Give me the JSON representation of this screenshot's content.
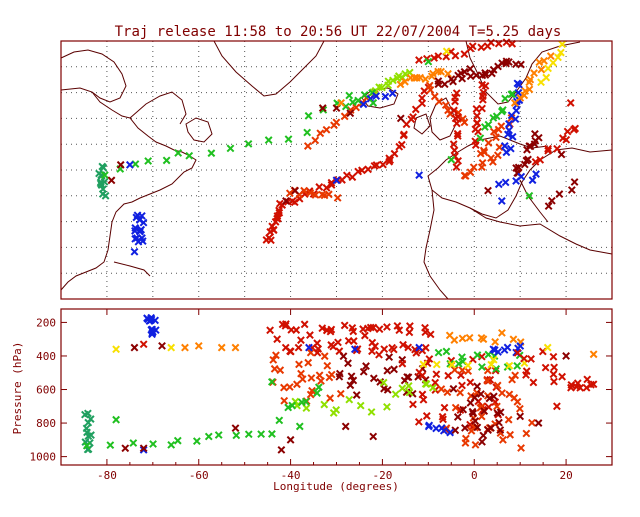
{
  "chart_data": {
    "type": "scatter",
    "title": "Traj release 11:58 to 20:56 UT 22/07/2004    T=5.25 days",
    "map_panel": {
      "lon_range": [
        -90,
        30
      ],
      "lat_range": [
        20,
        70
      ],
      "grid": true
    },
    "pressure_panel": {
      "xlabel": "Longitude  (degrees)",
      "ylabel": "Pressure  (hPa)",
      "xlim": [
        -90,
        30
      ],
      "ylim": [
        1050,
        120
      ],
      "x_ticks": [
        "-80",
        "-60",
        "-40",
        "-20",
        "0",
        "20"
      ],
      "x_tick_values": [
        -80,
        -60,
        -40,
        -20,
        0,
        20
      ],
      "y_ticks": [
        "200",
        "400",
        "600",
        "800",
        "1000"
      ],
      "y_tick_values": [
        200,
        400,
        600,
        800,
        1000
      ]
    },
    "colors": {
      "darkred": "#8b0000",
      "red": "#d01000",
      "redorange": "#e83800",
      "orange": "#ff8000",
      "yellow": "#f8e000",
      "lime": "#90e000",
      "green": "#20c020",
      "seagreen": "#20a060",
      "blue": "#1020e0",
      "frame": "#800000"
    },
    "map_clusters": [
      {
        "lon": [
          -81,
          -81
        ],
        "lat": [
          40,
          46
        ],
        "n": 12,
        "jit": 0.8,
        "color": "seagreen"
      },
      {
        "lon": [
          -81,
          -64
        ],
        "lat": [
          44,
          48
        ],
        "n": 6,
        "jit": 0.6,
        "color": "green"
      },
      {
        "lon": [
          -62,
          -36
        ],
        "lat": [
          48,
          52
        ],
        "n": 7,
        "jit": 0.5,
        "color": "green"
      },
      {
        "lon": [
          -36,
          -27
        ],
        "lat": [
          55,
          59
        ],
        "n": 4,
        "jit": 0.6,
        "color": "green"
      },
      {
        "lon": [
          -73,
          -73
        ],
        "lat": [
          30,
          36
        ],
        "n": 16,
        "jit": 1.0,
        "color": "blue"
      },
      {
        "lon": [
          -45,
          -42
        ],
        "lat": [
          31,
          38
        ],
        "n": 14,
        "jit": 0.5,
        "color": "red"
      },
      {
        "lon": [
          -42,
          -18
        ],
        "lat": [
          38,
          47
        ],
        "n": 24,
        "jit": 0.6,
        "color": "red"
      },
      {
        "lon": [
          -18,
          -10
        ],
        "lat": [
          47,
          61
        ],
        "n": 14,
        "jit": 0.5,
        "color": "red"
      },
      {
        "lon": [
          -10,
          -2
        ],
        "lat": [
          61,
          54
        ],
        "n": 10,
        "jit": 0.6,
        "color": "redorange"
      },
      {
        "lon": [
          -40,
          -30
        ],
        "lat": [
          41,
          40
        ],
        "n": 10,
        "jit": 0.6,
        "color": "redorange"
      },
      {
        "lon": [
          -36,
          -22
        ],
        "lat": [
          50,
          60
        ],
        "n": 12,
        "jit": 0.4,
        "color": "redorange"
      },
      {
        "lon": [
          -22,
          -14
        ],
        "lat": [
          60,
          64
        ],
        "n": 12,
        "jit": 0.4,
        "color": "lime"
      },
      {
        "lon": [
          -28,
          -22
        ],
        "lat": [
          57,
          60
        ],
        "n": 5,
        "jit": 0.4,
        "color": "green"
      },
      {
        "lon": [
          -24,
          -18
        ],
        "lat": [
          58,
          60
        ],
        "n": 5,
        "jit": 0.5,
        "color": "blue"
      },
      {
        "lon": [
          -16,
          -6
        ],
        "lat": [
          62,
          64
        ],
        "n": 12,
        "jit": 0.5,
        "color": "orange"
      },
      {
        "lon": [
          -8,
          10
        ],
        "lat": [
          62,
          66
        ],
        "n": 24,
        "jit": 0.9,
        "color": "darkred"
      },
      {
        "lon": [
          -4,
          -4
        ],
        "lat": [
          46,
          60
        ],
        "n": 14,
        "jit": 0.5,
        "color": "red"
      },
      {
        "lon": [
          -2,
          6
        ],
        "lat": [
          44,
          49
        ],
        "n": 10,
        "jit": 0.8,
        "color": "redorange"
      },
      {
        "lon": [
          0,
          2
        ],
        "lat": [
          50,
          62
        ],
        "n": 14,
        "jit": 0.7,
        "color": "red"
      },
      {
        "lon": [
          1,
          8
        ],
        "lat": [
          48,
          55
        ],
        "n": 10,
        "jit": 0.8,
        "color": "redorange"
      },
      {
        "lon": [
          2,
          8
        ],
        "lat": [
          52,
          60
        ],
        "n": 10,
        "jit": 0.9,
        "color": "green"
      },
      {
        "lon": [
          7,
          10
        ],
        "lat": [
          48,
          62
        ],
        "n": 16,
        "jit": 0.8,
        "color": "blue"
      },
      {
        "lon": [
          9,
          14
        ],
        "lat": [
          44,
          52
        ],
        "n": 14,
        "jit": 0.8,
        "color": "darkred"
      },
      {
        "lon": [
          14,
          22
        ],
        "lat": [
          47,
          53
        ],
        "n": 10,
        "jit": 0.9,
        "color": "red"
      },
      {
        "lon": [
          9,
          16
        ],
        "lat": [
          58,
          67
        ],
        "n": 12,
        "jit": 0.7,
        "color": "orange"
      },
      {
        "lon": [
          15,
          19
        ],
        "lat": [
          62,
          69
        ],
        "n": 7,
        "jit": 0.6,
        "color": "yellow"
      },
      {
        "lon": [
          -12,
          8
        ],
        "lat": [
          66,
          70
        ],
        "n": 16,
        "jit": 0.6,
        "color": "red"
      },
      {
        "lon": [
          5,
          14
        ],
        "lat": [
          42,
          44
        ],
        "n": 6,
        "jit": 0.6,
        "color": "blue"
      },
      {
        "lon": [
          16,
          22
        ],
        "lat": [
          38,
          42
        ],
        "n": 5,
        "jit": 0.8,
        "color": "darkred"
      }
    ],
    "map_markers": [
      {
        "lon": -77,
        "lat": 46,
        "color": "darkred"
      },
      {
        "lon": -75,
        "lat": 46,
        "color": "blue"
      },
      {
        "lon": -79,
        "lat": 43,
        "color": "darkred"
      },
      {
        "lon": -30,
        "lat": 57,
        "color": "darkred"
      },
      {
        "lon": -33,
        "lat": 57,
        "color": "darkred"
      },
      {
        "lon": -27,
        "lat": 56,
        "color": "darkred"
      },
      {
        "lon": -29,
        "lat": 58,
        "color": "orange"
      },
      {
        "lon": -22,
        "lat": 58,
        "color": "green"
      },
      {
        "lon": -16,
        "lat": 55,
        "color": "darkred"
      },
      {
        "lon": -5,
        "lat": 47,
        "color": "green"
      },
      {
        "lon": -10,
        "lat": 66,
        "color": "green"
      },
      {
        "lon": -6,
        "lat": 68,
        "color": "yellow"
      },
      {
        "lon": 19,
        "lat": 48,
        "color": "darkred"
      },
      {
        "lon": 21,
        "lat": 58,
        "color": "red"
      },
      {
        "lon": -12,
        "lat": 44,
        "color": "blue"
      },
      {
        "lon": -39,
        "lat": 41,
        "color": "darkred"
      },
      {
        "lon": -41,
        "lat": 39,
        "color": "darkred"
      },
      {
        "lon": -30,
        "lat": 43,
        "color": "blue"
      },
      {
        "lon": 3,
        "lat": 41,
        "color": "darkred"
      },
      {
        "lon": 12,
        "lat": 40,
        "color": "green"
      },
      {
        "lon": 6,
        "lat": 39,
        "color": "blue"
      }
    ],
    "pressure_clusters": [
      {
        "lon": [
          -84,
          -84
        ],
        "p": [
          740,
          960
        ],
        "n": 12,
        "jit": 0.8,
        "color": "seagreen"
      },
      {
        "lon": [
          -84,
          -60
        ],
        "p": [
          930,
          910
        ],
        "n": 6,
        "jit": 0.5,
        "color": "green"
      },
      {
        "lon": [
          -58,
          -44
        ],
        "p": [
          880,
          860
        ],
        "n": 6,
        "jit": 0.6,
        "color": "green"
      },
      {
        "lon": [
          -71,
          -70
        ],
        "p": [
          180,
          320
        ],
        "n": 14,
        "jit": 0.8,
        "color": "blue"
      },
      {
        "lon": [
          -44,
          -10
        ],
        "p": [
          240,
          250
        ],
        "n": 30,
        "jit": 1.8,
        "color": "red"
      },
      {
        "lon": [
          -44,
          -10
        ],
        "p": [
          330,
          360
        ],
        "n": 30,
        "jit": 1.8,
        "color": "red"
      },
      {
        "lon": [
          -44,
          -30
        ],
        "p": [
          400,
          660
        ],
        "n": 26,
        "jit": 1.6,
        "color": "redorange"
      },
      {
        "lon": [
          -30,
          -10
        ],
        "p": [
          420,
          620
        ],
        "n": 26,
        "jit": 1.6,
        "color": "darkred"
      },
      {
        "lon": [
          -14,
          6
        ],
        "p": [
          400,
          820
        ],
        "n": 40,
        "jit": 2.2,
        "color": "red"
      },
      {
        "lon": [
          -6,
          12
        ],
        "p": [
          480,
          940
        ],
        "n": 40,
        "jit": 2.0,
        "color": "redorange"
      },
      {
        "lon": [
          -4,
          6
        ],
        "p": [
          600,
          900
        ],
        "n": 24,
        "jit": 1.6,
        "color": "darkred"
      },
      {
        "lon": [
          -8,
          10
        ],
        "p": [
          380,
          520
        ],
        "n": 14,
        "jit": 1.6,
        "color": "green"
      },
      {
        "lon": [
          -6,
          10
        ],
        "p": [
          300,
          280
        ],
        "n": 10,
        "jit": 1.2,
        "color": "orange"
      },
      {
        "lon": [
          -10,
          12
        ],
        "p": [
          420,
          460
        ],
        "n": 8,
        "jit": 1.5,
        "color": "yellow"
      },
      {
        "lon": [
          -40,
          -20
        ],
        "p": [
          680,
          720
        ],
        "n": 10,
        "jit": 1.5,
        "color": "lime"
      },
      {
        "lon": [
          -20,
          -8
        ],
        "p": [
          560,
          610
        ],
        "n": 8,
        "jit": 1.2,
        "color": "lime"
      },
      {
        "lon": [
          4,
          10
        ],
        "p": [
          350,
          380
        ],
        "n": 8,
        "jit": 0.9,
        "color": "blue"
      },
      {
        "lon": [
          10,
          18
        ],
        "p": [
          380,
          560
        ],
        "n": 12,
        "jit": 1.5,
        "color": "red"
      },
      {
        "lon": [
          20,
          26
        ],
        "p": [
          540,
          600
        ],
        "n": 10,
        "jit": 0.9,
        "color": "red"
      },
      {
        "lon": [
          -44,
          -34
        ],
        "p": [
          560,
          760
        ],
        "n": 8,
        "jit": 1.4,
        "color": "green"
      },
      {
        "lon": [
          -10,
          -6
        ],
        "p": [
          800,
          860
        ],
        "n": 6,
        "jit": 0.8,
        "color": "blue"
      }
    ],
    "pressure_markers": [
      {
        "lon": -78,
        "p": 360,
        "color": "yellow"
      },
      {
        "lon": -66,
        "p": 350,
        "color": "yellow"
      },
      {
        "lon": -63,
        "p": 350,
        "color": "orange"
      },
      {
        "lon": -60,
        "p": 340,
        "color": "orange"
      },
      {
        "lon": -55,
        "p": 350,
        "color": "orange"
      },
      {
        "lon": -52,
        "p": 350,
        "color": "orange"
      },
      {
        "lon": -74,
        "p": 350,
        "color": "darkred"
      },
      {
        "lon": -68,
        "p": 340,
        "color": "darkred"
      },
      {
        "lon": -72,
        "p": 330,
        "color": "red"
      },
      {
        "lon": -78,
        "p": 780,
        "color": "green"
      },
      {
        "lon": -72,
        "p": 960,
        "color": "blue"
      },
      {
        "lon": -76,
        "p": 950,
        "color": "darkred"
      },
      {
        "lon": -72,
        "p": 950,
        "color": "darkred"
      },
      {
        "lon": -66,
        "p": 930,
        "color": "green"
      },
      {
        "lon": -42,
        "p": 960,
        "color": "darkred"
      },
      {
        "lon": -40,
        "p": 900,
        "color": "darkred"
      },
      {
        "lon": -38,
        "p": 820,
        "color": "green"
      },
      {
        "lon": -52,
        "p": 830,
        "color": "darkred"
      },
      {
        "lon": -36,
        "p": 350,
        "color": "blue"
      },
      {
        "lon": -26,
        "p": 360,
        "color": "blue"
      },
      {
        "lon": -12,
        "p": 350,
        "color": "blue"
      },
      {
        "lon": 20,
        "p": 400,
        "color": "darkred"
      },
      {
        "lon": 26,
        "p": 390,
        "color": "orange"
      },
      {
        "lon": 16,
        "p": 350,
        "color": "yellow"
      },
      {
        "lon": -22,
        "p": 880,
        "color": "darkred"
      },
      {
        "lon": -28,
        "p": 820,
        "color": "darkred"
      },
      {
        "lon": 14,
        "p": 800,
        "color": "darkred"
      },
      {
        "lon": 10,
        "p": 760,
        "color": "darkred"
      },
      {
        "lon": 18,
        "p": 700,
        "color": "red"
      }
    ]
  }
}
